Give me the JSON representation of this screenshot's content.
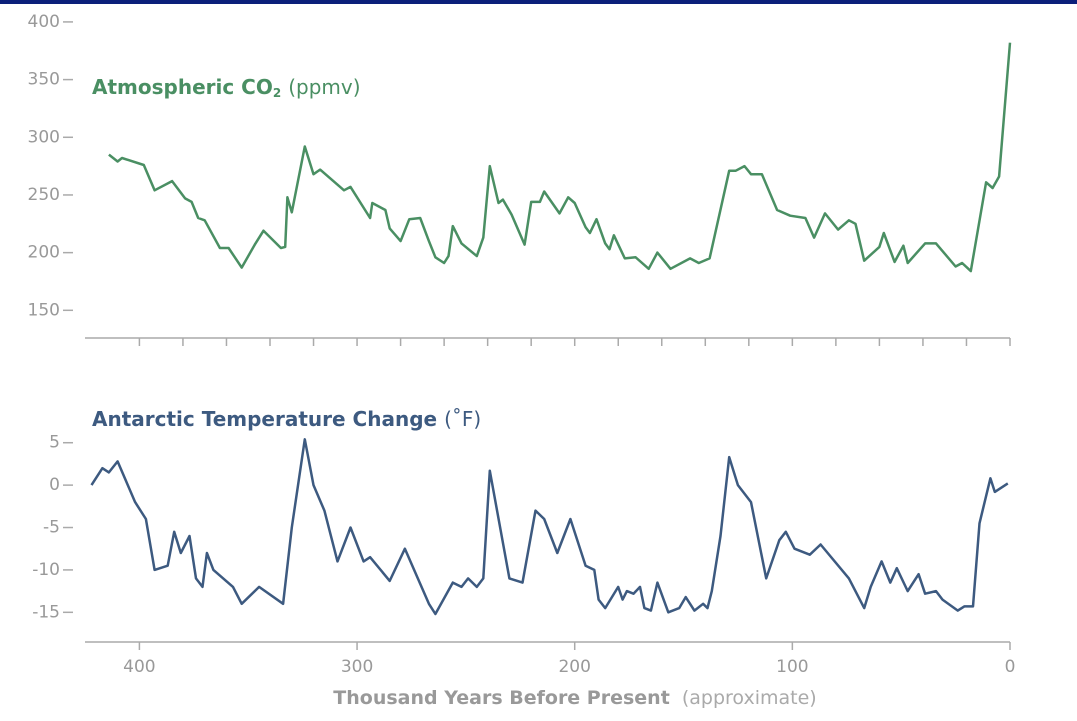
{
  "chart_data": [
    {
      "type": "line",
      "title": "Atmospheric CO",
      "title_subscript": "2",
      "title_unit": "(ppmv)",
      "color": "#4a8f63",
      "x": [
        414,
        410,
        408,
        398,
        393,
        385,
        379,
        376,
        373,
        370,
        363,
        359,
        353,
        347,
        343,
        335,
        333,
        332,
        330,
        324,
        320,
        317,
        306,
        303,
        294,
        293,
        287,
        285,
        280,
        276,
        271,
        267,
        264,
        260,
        258,
        256,
        252,
        245,
        242,
        239,
        235,
        233,
        229,
        223,
        220,
        216,
        214,
        207,
        203,
        200,
        195,
        193,
        190,
        186,
        184,
        182,
        177,
        172,
        166,
        162,
        156,
        147,
        143,
        138,
        129,
        126,
        122,
        119,
        114,
        107,
        101,
        94,
        90,
        85,
        79,
        74,
        71,
        67,
        60,
        58,
        53,
        49,
        47,
        39,
        34,
        25,
        22,
        18,
        11,
        8,
        5,
        0
      ],
      "values": [
        285,
        279,
        282,
        276,
        254,
        262,
        247,
        244,
        230,
        228,
        204,
        204,
        187,
        207,
        219,
        204,
        205,
        248,
        235,
        292,
        268,
        272,
        254,
        257,
        230,
        243,
        237,
        221,
        210,
        229,
        230,
        210,
        196,
        191,
        197,
        223,
        208,
        197,
        213,
        275,
        243,
        246,
        233,
        207,
        244,
        244,
        253,
        234,
        248,
        243,
        222,
        217,
        229,
        208,
        203,
        215,
        195,
        196,
        186,
        200,
        186,
        195,
        191,
        195,
        271,
        271,
        275,
        268,
        268,
        237,
        232,
        230,
        213,
        234,
        220,
        228,
        225,
        193,
        205,
        217,
        192,
        206,
        191,
        208,
        208,
        188,
        191,
        184,
        261,
        256,
        266,
        382
      ],
      "xlim": [
        425,
        0
      ],
      "xticks": [
        400,
        380,
        360,
        340,
        320,
        300,
        280,
        260,
        240,
        220,
        200,
        180,
        160,
        140,
        120,
        100,
        80,
        60,
        40,
        20,
        0
      ],
      "xtick_labels": false,
      "ylim": [
        126,
        406
      ],
      "yticks": [
        150,
        200,
        250,
        300,
        350,
        400
      ]
    },
    {
      "type": "line",
      "title": "Antarctic Temperature Change",
      "title_unit": "(˚F)",
      "color": "#3d5a80",
      "x": [
        422,
        417,
        414,
        410,
        402,
        397,
        393,
        387,
        384,
        381,
        377,
        374,
        371,
        369,
        366,
        357,
        353,
        345,
        334,
        330,
        324,
        320,
        315,
        309,
        303,
        297,
        294,
        285,
        278,
        267,
        264,
        256,
        252,
        249,
        245,
        242,
        239,
        230,
        224,
        218,
        214,
        208,
        202,
        195,
        191,
        189,
        186,
        180,
        178,
        176,
        173,
        170,
        168,
        165,
        162,
        157,
        152,
        149,
        145,
        141,
        139,
        137,
        133,
        129,
        125,
        119,
        112,
        106,
        103,
        99,
        92,
        87,
        74,
        67,
        64,
        59,
        55,
        52,
        47,
        42,
        39,
        34,
        31,
        24,
        21,
        17,
        14,
        9,
        7,
        1
      ],
      "values": [
        0,
        2,
        1.5,
        2.8,
        -2,
        -4,
        -10,
        -9.5,
        -5.5,
        -8,
        -6,
        -11,
        -12,
        -8,
        -10,
        -12,
        -14,
        -12,
        -14,
        -5,
        5.4,
        0,
        -3,
        -9,
        -5,
        -9,
        -8.5,
        -11.3,
        -7.5,
        -14,
        -15.2,
        -11.5,
        -12,
        -11,
        -12,
        -11,
        1.7,
        -11,
        -11.5,
        -3,
        -4,
        -8,
        -4,
        -9.5,
        -10,
        -13.5,
        -14.5,
        -12,
        -13.5,
        -12.5,
        -12.8,
        -12,
        -14.5,
        -14.8,
        -11.5,
        -15,
        -14.5,
        -13.2,
        -14.8,
        -14,
        -14.5,
        -12.5,
        -6,
        3.3,
        0,
        -2,
        -11,
        -6.5,
        -5.5,
        -7.5,
        -8.2,
        -7,
        -11,
        -14.5,
        -12,
        -9,
        -11.5,
        -9.8,
        -12.5,
        -10.5,
        -12.8,
        -12.5,
        -13.5,
        -14.8,
        -14.3,
        -14.3,
        -4.5,
        0.8,
        -0.8,
        0.2
      ],
      "xlim": [
        425,
        0
      ],
      "xticks": [
        400,
        300,
        200,
        100,
        0
      ],
      "xtick_labels": true,
      "ylim": [
        -18.5,
        6.5
      ],
      "yticks": [
        -15,
        -10,
        -5,
        0,
        5
      ],
      "xlabel": "Thousand Years Before Present",
      "xlabel_note": "(approximate)"
    }
  ]
}
